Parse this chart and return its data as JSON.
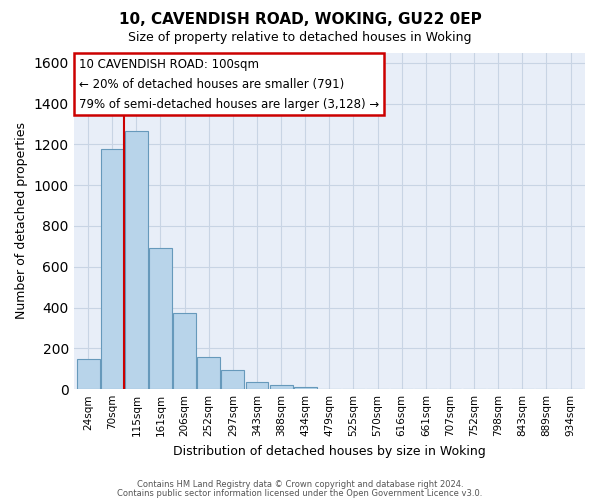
{
  "title_line1": "10, CAVENDISH ROAD, WOKING, GU22 0EP",
  "title_line2": "Size of property relative to detached houses in Woking",
  "xlabel": "Distribution of detached houses by size in Woking",
  "ylabel": "Number of detached properties",
  "categories": [
    "24sqm",
    "70sqm",
    "115sqm",
    "161sqm",
    "206sqm",
    "252sqm",
    "297sqm",
    "343sqm",
    "388sqm",
    "434sqm",
    "479sqm",
    "525sqm",
    "570sqm",
    "616sqm",
    "661sqm",
    "707sqm",
    "752sqm",
    "798sqm",
    "843sqm",
    "889sqm",
    "934sqm"
  ],
  "values": [
    150,
    1175,
    1265,
    690,
    375,
    160,
    93,
    37,
    20,
    10,
    0,
    0,
    0,
    0,
    0,
    0,
    0,
    0,
    0,
    0,
    0
  ],
  "bar_color": "#b8d4ea",
  "bar_edge_color": "#6699bb",
  "grid_color": "#c8d4e4",
  "background_color": "#ffffff",
  "plot_bg_color": "#e8eef8",
  "annotation_box_text_line1": "10 CAVENDISH ROAD: 100sqm",
  "annotation_box_text_line2": "← 20% of detached houses are smaller (791)",
  "annotation_box_text_line3": "79% of semi-detached houses are larger (3,128) →",
  "red_line_x": 1.5,
  "annotation_box_color": "white",
  "annotation_box_edge_color": "#cc0000",
  "red_line_color": "#cc0000",
  "ylim": [
    0,
    1650
  ],
  "yticks": [
    0,
    200,
    400,
    600,
    800,
    1000,
    1200,
    1400,
    1600
  ],
  "footer_line1": "Contains HM Land Registry data © Crown copyright and database right 2024.",
  "footer_line2": "Contains public sector information licensed under the Open Government Licence v3.0."
}
